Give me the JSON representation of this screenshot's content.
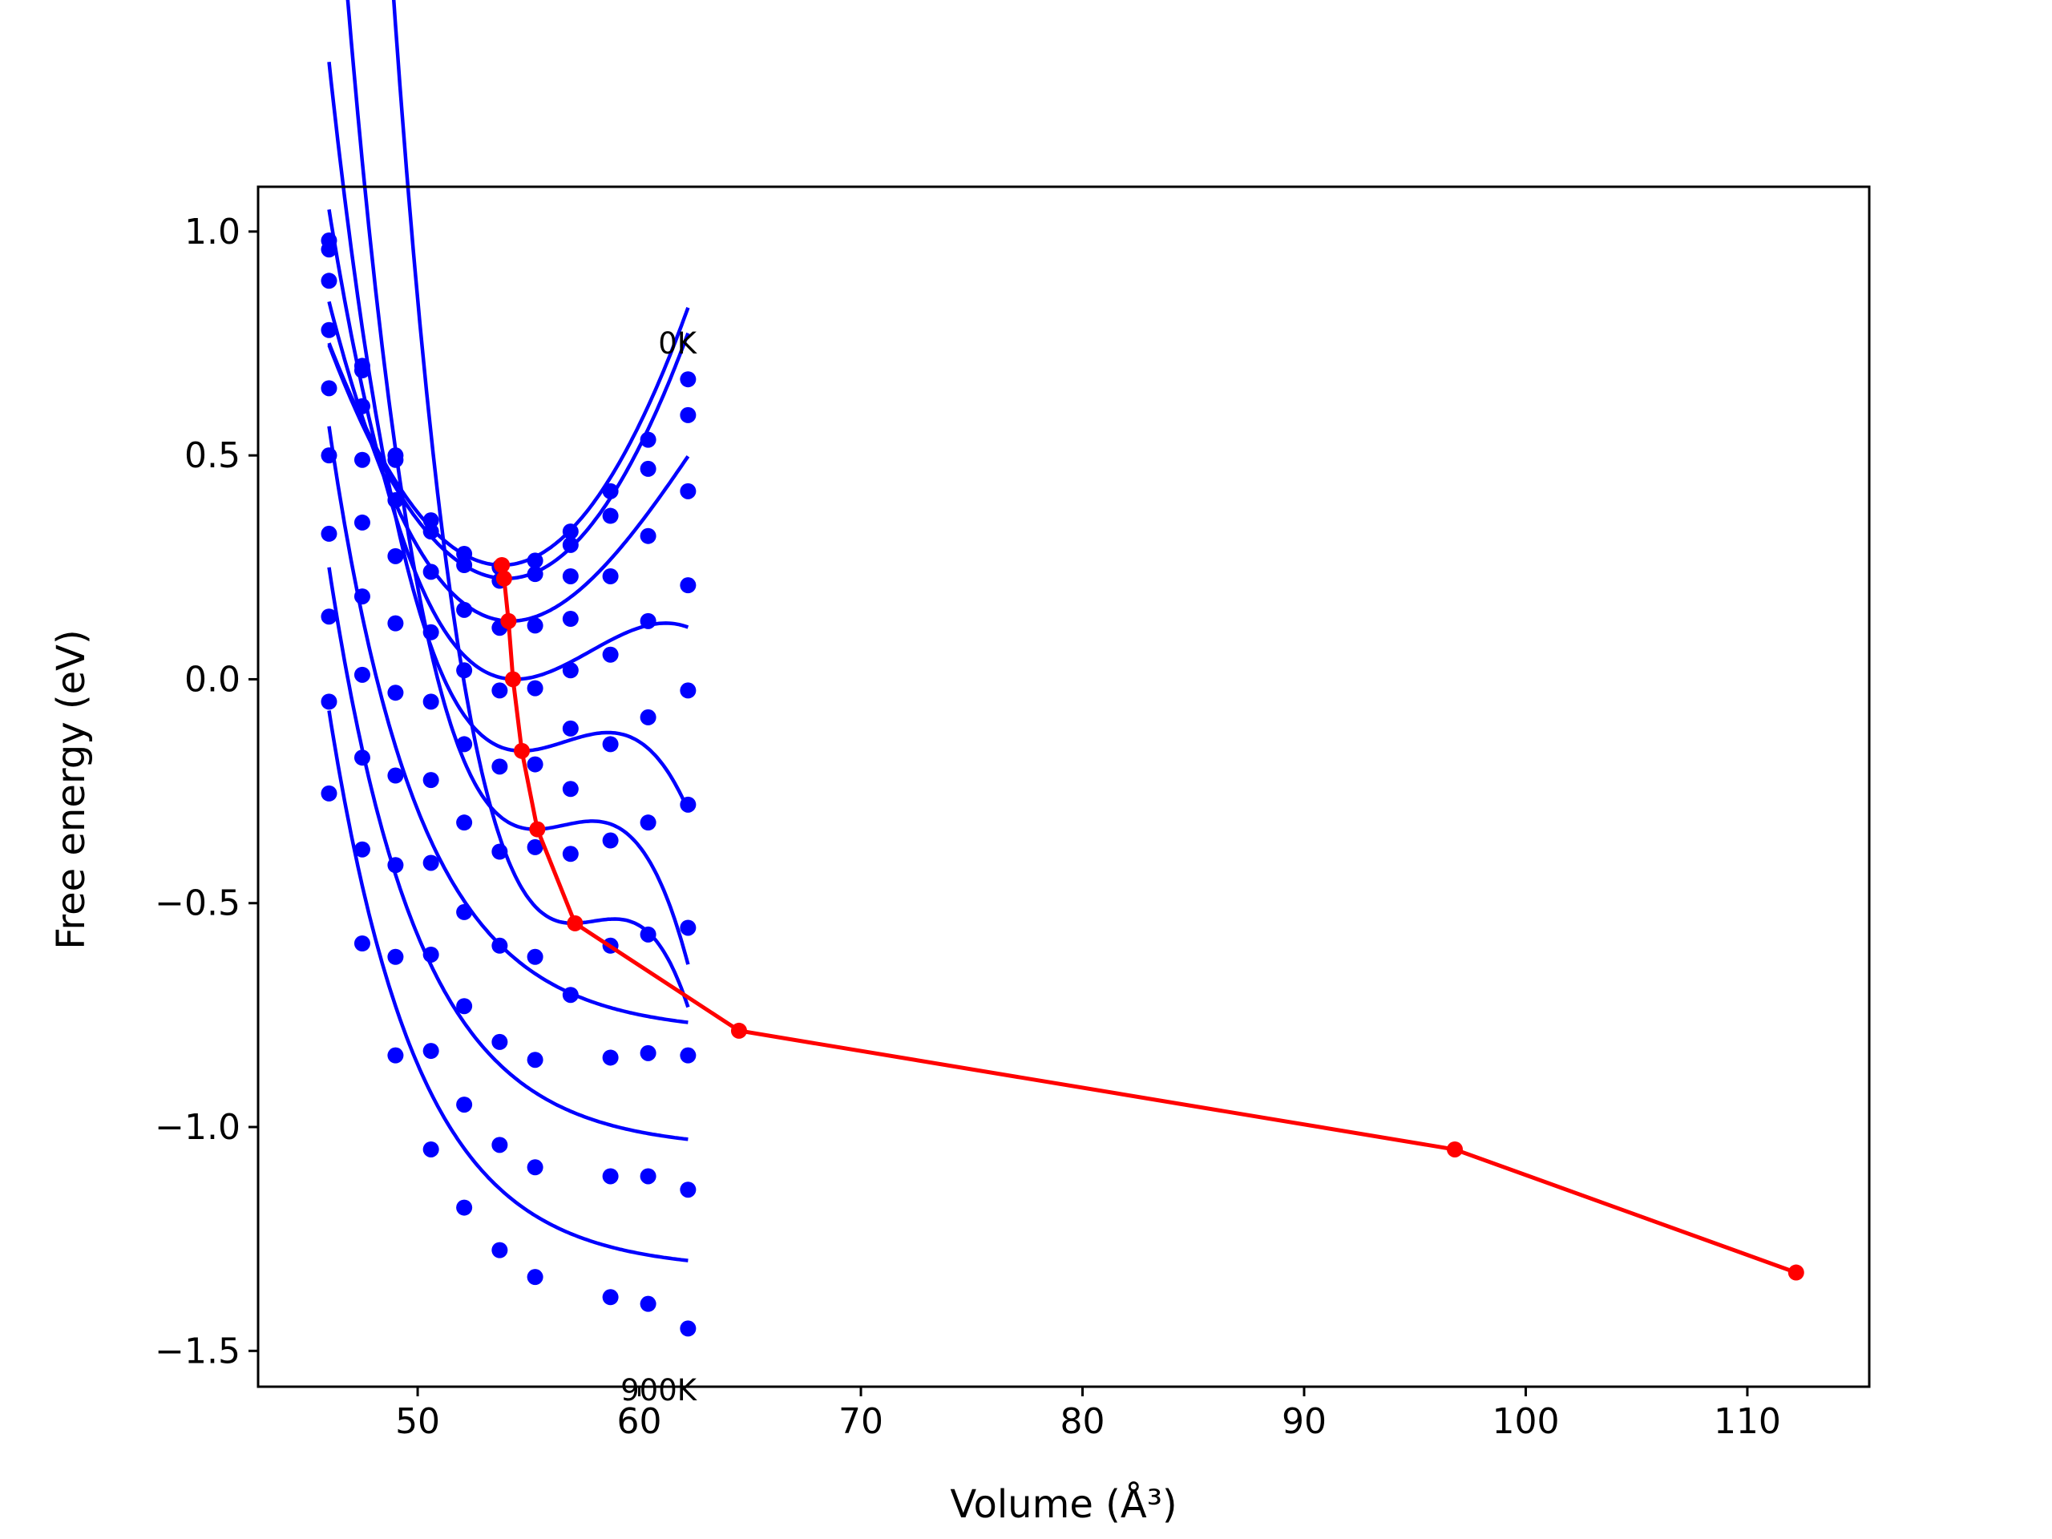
{
  "chart_data": {
    "type": "line",
    "xlabel": "Volume (Å³)",
    "ylabel": "Free energy (eV)",
    "xlim": [
      42.8,
      115.5
    ],
    "ylim": [
      -1.58,
      1.1
    ],
    "x_ticks": [
      50,
      60,
      70,
      80,
      90,
      100,
      110
    ],
    "y_ticks": [
      1.0,
      0.5,
      0.0,
      -0.5,
      -1.0,
      -1.5
    ],
    "x_tick_labels": [
      "50",
      "60",
      "70",
      "80",
      "90",
      "100",
      "110"
    ],
    "y_tick_labels": [
      "1.0",
      "0.5",
      "0.0",
      "−0.5",
      "−1.0",
      "−1.5"
    ],
    "grid": false,
    "annotations": [
      {
        "text": "0K",
        "x": 62.2,
        "y": 0.74
      },
      {
        "text": "900K",
        "x": 62.2,
        "y": -1.59
      }
    ],
    "colors": {
      "data_points": "#0000ff",
      "fit_curves": "#0000ff",
      "minimum_path": "#ff0000"
    },
    "data_volumes": [
      46.0,
      47.5,
      49.0,
      50.6,
      52.1,
      53.7,
      55.3,
      56.9,
      58.7,
      60.4,
      62.2
    ],
    "series": [
      {
        "fit": {
          "E0": 0.255,
          "V0": 53.8,
          "B": 0.00815,
          "D": 0.0
        },
        "points": [
          0.98,
          0.7,
          0.5,
          0.355,
          0.28,
          0.25,
          0.265,
          0.33,
          0.42,
          0.535,
          0.67
        ]
      },
      {
        "fit": {
          "E0": 0.225,
          "V0": 54.0,
          "B": 0.00815,
          "D": 0.0
        },
        "points": [
          0.96,
          0.69,
          0.49,
          0.33,
          0.255,
          0.22,
          0.235,
          0.3,
          0.365,
          0.47,
          0.59
        ]
      },
      {
        "fit": {
          "E0": 0.13,
          "V0": 54.2,
          "B": 0.00815,
          "D": 0.0003
        },
        "points": [
          0.89,
          0.61,
          0.4,
          0.24,
          0.155,
          0.115,
          0.12,
          0.23,
          0.23,
          0.32,
          0.42
        ]
      },
      {
        "fit": {
          "E0": 0.0,
          "V0": 54.4,
          "B": 0.00815,
          "D": 0.0008
        },
        "points": [
          0.78,
          0.49,
          0.275,
          0.105,
          0.02,
          -0.025,
          -0.02,
          0.135,
          0.055,
          0.13,
          0.21
        ]
      },
      {
        "fit": {
          "E0": -0.16,
          "V0": 54.7,
          "B": 0.00815,
          "D": 0.0014
        },
        "points": [
          0.65,
          0.35,
          0.125,
          -0.05,
          -0.145,
          -0.195,
          -0.19,
          0.02,
          -0.145,
          -0.085,
          -0.025
        ]
      },
      {
        "fit": {
          "E0": -0.335,
          "V0": 55.3,
          "B": 0.00815,
          "D": 0.0021
        },
        "points": [
          0.5,
          0.185,
          -0.03,
          -0.225,
          -0.32,
          -0.385,
          -0.375,
          -0.11,
          -0.36,
          -0.32,
          -0.28
        ]
      },
      {
        "fit": {
          "E0": -0.545,
          "V0": 57.0,
          "B": 0.00815,
          "D": 0.0029
        },
        "points": [
          0.325,
          0.01,
          -0.215,
          -0.41,
          -0.52,
          -0.595,
          -0.62,
          -0.245,
          -0.595,
          -0.57,
          -0.555
        ]
      },
      {
        "fit": {
          "asym": -0.79,
          "A": 1.355,
          "k": 0.25
        },
        "points": [
          0.14,
          -0.175,
          -0.415,
          -0.615,
          -0.73,
          -0.81,
          -0.85,
          -0.39,
          -0.845,
          -0.835,
          -0.84
        ]
      },
      {
        "fit": {
          "asym": -1.05,
          "A": 1.3,
          "k": 0.25
        },
        "points": [
          -0.05,
          -0.38,
          -0.62,
          -0.83,
          -0.95,
          -1.04,
          -1.09,
          -0.705,
          -1.11,
          -1.11,
          -1.14
        ]
      },
      {
        "fit": {
          "asym": -1.32,
          "A": 1.25,
          "k": 0.25
        },
        "points": [
          -0.255,
          -0.59,
          -0.84,
          -1.05,
          -1.18,
          -1.275,
          -1.335,
          null,
          -1.38,
          -1.395,
          -1.45
        ]
      }
    ],
    "minimum_path": {
      "x": [
        53.8,
        53.9,
        54.1,
        54.3,
        54.7,
        55.4,
        57.1,
        64.5,
        96.8,
        112.2
      ],
      "y": [
        0.255,
        0.225,
        0.13,
        0.0,
        -0.16,
        -0.335,
        -0.545,
        -0.785,
        -1.05,
        -1.325
      ]
    }
  }
}
